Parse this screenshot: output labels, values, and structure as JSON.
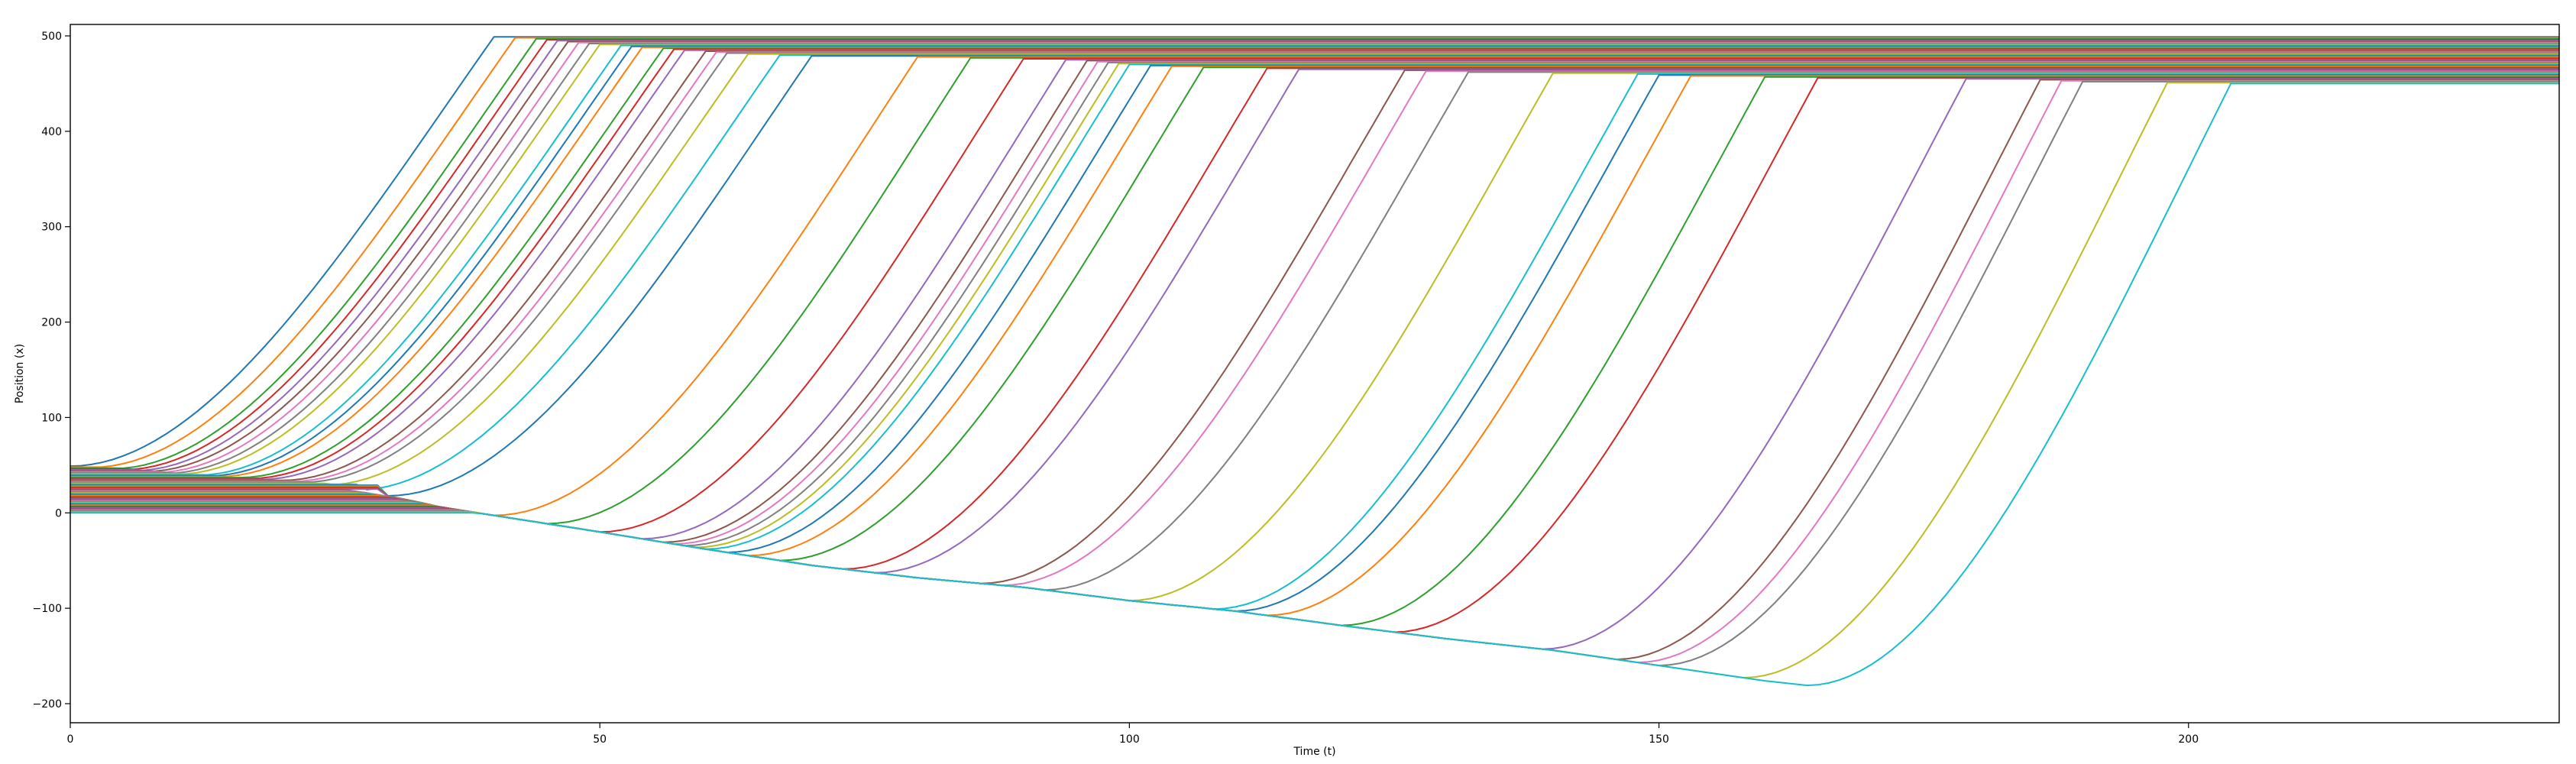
{
  "chart_data": {
    "type": "line",
    "title": "",
    "xlabel": "Time (t)",
    "ylabel": "Position (x)",
    "xlim": [
      0,
      235
    ],
    "ylim": [
      -220,
      512
    ],
    "xticks": [
      0,
      50,
      100,
      150,
      200
    ],
    "yticks": [
      -200,
      -100,
      0,
      100,
      200,
      300,
      400,
      500
    ],
    "grid": false,
    "legend": "none",
    "palette": [
      "#1f77b4",
      "#ff7f0e",
      "#2ca02c",
      "#d62728",
      "#9467bd",
      "#8c564b",
      "#e377c2",
      "#7f7f7f",
      "#bcbd22",
      "#17becf"
    ],
    "vehicles": {
      "count": 50,
      "start_positions_range": [
        0,
        49
      ],
      "exit_position_range": [
        450,
        499
      ],
      "departure_times": [
        0,
        2,
        4,
        5,
        6,
        7,
        8,
        9,
        10,
        12,
        13,
        14,
        16,
        17,
        18,
        20,
        21,
        22,
        24,
        27,
        30,
        40,
        45,
        50,
        54,
        56,
        57,
        58,
        59,
        60,
        62,
        64,
        67,
        73,
        76,
        86,
        88,
        92,
        100,
        108,
        110,
        113,
        120,
        125,
        139,
        146,
        148,
        150,
        158,
        164
      ],
      "launch_duration": 40
    }
  }
}
